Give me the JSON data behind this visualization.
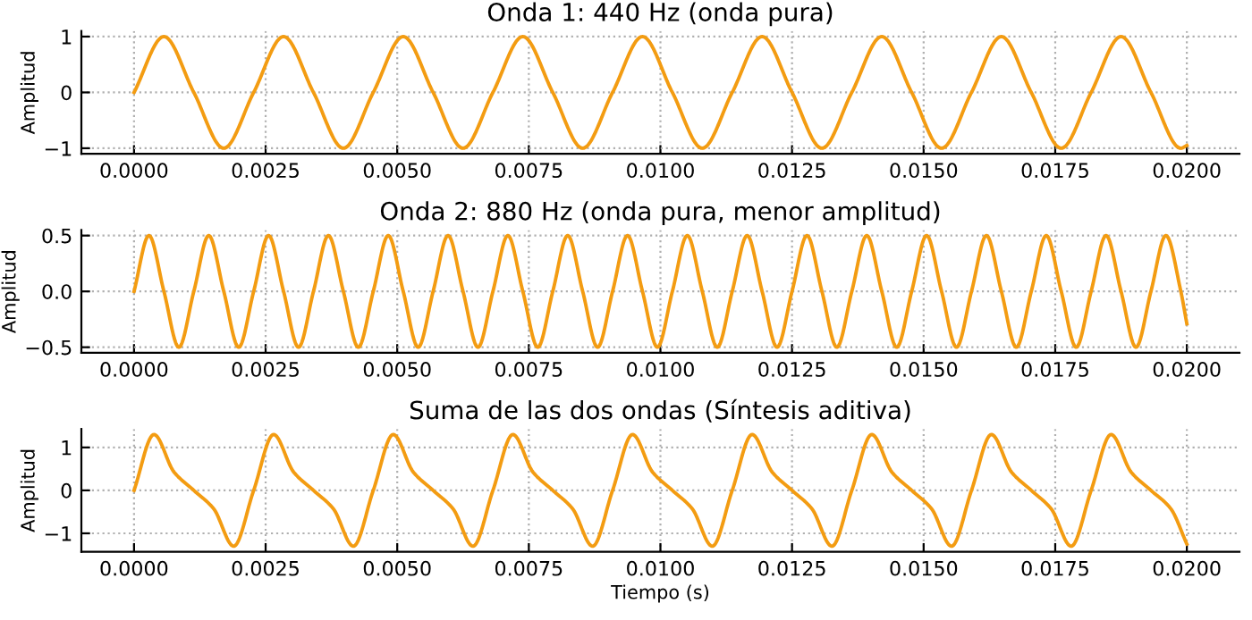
{
  "chart_data": [
    {
      "type": "line",
      "title": "Onda 1: 440 Hz (onda pura)",
      "ylabel": "Amplitud",
      "grid": true,
      "tick_labels": "xy",
      "xlim": [
        -0.001,
        0.021
      ],
      "ylim": [
        -1.1,
        1.1
      ],
      "xticks": [
        {
          "value": 0,
          "label": "0.0000"
        },
        {
          "value": 0.0025,
          "label": "0.0025"
        },
        {
          "value": 0.005,
          "label": "0.0050"
        },
        {
          "value": 0.0075,
          "label": "0.0075"
        },
        {
          "value": 0.01,
          "label": "0.0100"
        },
        {
          "value": 0.0125,
          "label": "0.0125"
        },
        {
          "value": 0.015,
          "label": "0.0150"
        },
        {
          "value": 0.0175,
          "label": "0.0175"
        },
        {
          "value": 0.02,
          "label": "0.0200"
        }
      ],
      "yticks": [
        {
          "value": -1,
          "label": "−1"
        },
        {
          "value": 0,
          "label": "0"
        },
        {
          "value": 1,
          "label": "1"
        }
      ],
      "series": [
        {
          "color": "#f39c12",
          "x": [
            0,
            0.000568,
            0.001136,
            0.001705,
            0.002273,
            0.002841,
            0.003409,
            0.003977,
            0.004545,
            0.005114,
            0.005682,
            0.00625,
            0.006818,
            0.007386,
            0.007955,
            0.008523,
            0.009091,
            0.009659,
            0.010227,
            0.010795,
            0.011364,
            0.011932,
            0.0125,
            0.013068,
            0.013636,
            0.014205,
            0.014773,
            0.015341,
            0.015909,
            0.016477,
            0.017045,
            0.017614,
            0.018182,
            0.01875,
            0.019318,
            0.019886,
            0.02
          ],
          "values": [
            0,
            1,
            0,
            -1,
            0,
            1,
            0,
            -1,
            0,
            1,
            0,
            -1,
            0,
            1,
            0,
            -1,
            0,
            1,
            0,
            -1,
            0,
            1,
            0,
            -1,
            0,
            1,
            0,
            -1,
            0,
            1,
            0,
            -1,
            0,
            1,
            0,
            -1,
            -0.95
          ]
        }
      ]
    },
    {
      "type": "line",
      "title": "Onda 2: 880 Hz (onda pura, menor amplitud)",
      "ylabel": "Amplitud",
      "grid": true,
      "tick_labels": "xy",
      "xlim": [
        -0.001,
        0.021
      ],
      "ylim": [
        -0.55,
        0.55
      ],
      "xticks": [
        {
          "value": 0,
          "label": "0.0000"
        },
        {
          "value": 0.0025,
          "label": "0.0025"
        },
        {
          "value": 0.005,
          "label": "0.0050"
        },
        {
          "value": 0.0075,
          "label": "0.0075"
        },
        {
          "value": 0.01,
          "label": "0.0100"
        },
        {
          "value": 0.0125,
          "label": "0.0125"
        },
        {
          "value": 0.015,
          "label": "0.0150"
        },
        {
          "value": 0.0175,
          "label": "0.0175"
        },
        {
          "value": 0.02,
          "label": "0.0200"
        }
      ],
      "yticks": [
        {
          "value": -0.5,
          "label": "−0.5"
        },
        {
          "value": 0,
          "label": "0.0"
        },
        {
          "value": 0.5,
          "label": "0.5"
        }
      ],
      "series": [
        {
          "color": "#f39c12",
          "x": [
            0,
            0.000284,
            0.000568,
            0.000852,
            0.001136,
            0.00142,
            0.001705,
            0.001989,
            0.002273,
            0.002557,
            0.002841,
            0.003125,
            0.003409,
            0.003693,
            0.003977,
            0.004261,
            0.004545,
            0.00483,
            0.005114,
            0.005398,
            0.005682,
            0.005966,
            0.00625,
            0.006534,
            0.006818,
            0.007102,
            0.007386,
            0.00767,
            0.007955,
            0.008239,
            0.008523,
            0.008807,
            0.009091,
            0.009375,
            0.009659,
            0.009943,
            0.010227,
            0.010511,
            0.010795,
            0.01108,
            0.011364,
            0.011648,
            0.011932,
            0.012216,
            0.0125,
            0.012784,
            0.013068,
            0.013352,
            0.013636,
            0.01392,
            0.014205,
            0.014489,
            0.014773,
            0.015057,
            0.015341,
            0.015625,
            0.015909,
            0.016193,
            0.016477,
            0.016761,
            0.017045,
            0.01733,
            0.017614,
            0.017898,
            0.018182,
            0.018466,
            0.01875,
            0.019034,
            0.019318,
            0.019602,
            0.019886,
            0.02
          ],
          "values": [
            0,
            0.5,
            0,
            -0.5,
            0,
            0.5,
            0,
            -0.5,
            0,
            0.5,
            0,
            -0.5,
            0,
            0.5,
            0,
            -0.5,
            0,
            0.5,
            0,
            -0.5,
            0,
            0.5,
            0,
            -0.5,
            0,
            0.5,
            0,
            -0.5,
            0,
            0.5,
            0,
            -0.5,
            0,
            0.5,
            0,
            -0.5,
            0,
            0.5,
            0,
            -0.5,
            0,
            0.5,
            0,
            -0.5,
            0,
            0.5,
            0,
            -0.5,
            0,
            0.5,
            0,
            -0.5,
            0,
            0.5,
            0,
            -0.5,
            0,
            0.5,
            0,
            -0.5,
            0,
            0.5,
            0,
            -0.5,
            0,
            0.5,
            0,
            -0.5,
            0,
            0.5,
            0,
            -0.29
          ]
        }
      ]
    },
    {
      "type": "line",
      "title": "Suma de las dos ondas (Síntesis aditiva)",
      "xlabel": "Tiempo (s)",
      "ylabel": "Amplitud",
      "grid": true,
      "xlim": [
        -0.001,
        0.021
      ],
      "ylim": [
        -1.43,
        1.43
      ],
      "xticks": [
        {
          "value": 0,
          "label": "0.0000"
        },
        {
          "value": 0.0025,
          "label": "0.0025"
        },
        {
          "value": 0.005,
          "label": "0.0050"
        },
        {
          "value": 0.0075,
          "label": "0.0075"
        },
        {
          "value": 0.01,
          "label": "0.0100"
        },
        {
          "value": 0.0125,
          "label": "0.0125"
        },
        {
          "value": 0.015,
          "label": "0.0150"
        },
        {
          "value": 0.0175,
          "label": "0.0175"
        },
        {
          "value": 0.02,
          "label": "0.0200"
        }
      ],
      "yticks": [
        {
          "value": -1,
          "label": "−1"
        },
        {
          "value": 0,
          "label": "0"
        },
        {
          "value": 1,
          "label": "1"
        }
      ],
      "series": [
        {
          "color": "#f39c12",
          "x": [
            0,
            0.000379,
            0.000758,
            0.001136,
            0.001515,
            0.001894,
            0.002273,
            0.002652,
            0.00303,
            0.003409,
            0.003788,
            0.004167,
            0.004545,
            0.004924,
            0.005303,
            0.005682,
            0.006061,
            0.006439,
            0.006818,
            0.007197,
            0.007576,
            0.007955,
            0.008333,
            0.008712,
            0.009091,
            0.00947,
            0.009848,
            0.010227,
            0.010606,
            0.010985,
            0.011364,
            0.011742,
            0.012121,
            0.0125,
            0.012879,
            0.013258,
            0.013636,
            0.014015,
            0.014394,
            0.014773,
            0.015152,
            0.01553,
            0.015909,
            0.016288,
            0.016667,
            0.017045,
            0.017424,
            0.017803,
            0.018182,
            0.018561,
            0.018939,
            0.019318,
            0.019697,
            0.02
          ],
          "values": [
            0,
            1.3,
            0.43,
            0,
            -0.43,
            -1.3,
            0,
            1.3,
            0.43,
            0,
            -0.43,
            -1.3,
            0,
            1.3,
            0.43,
            0,
            -0.43,
            -1.3,
            0,
            1.3,
            0.43,
            0,
            -0.43,
            -1.3,
            0,
            1.3,
            0.43,
            0,
            -0.43,
            -1.3,
            0,
            1.3,
            0.43,
            0,
            -0.43,
            -1.3,
            0,
            1.3,
            0.43,
            0,
            -0.43,
            -1.3,
            0,
            1.3,
            0.43,
            0,
            -0.43,
            -1.3,
            0,
            1.3,
            0.43,
            0,
            -0.43,
            -1.25
          ]
        }
      ]
    }
  ]
}
